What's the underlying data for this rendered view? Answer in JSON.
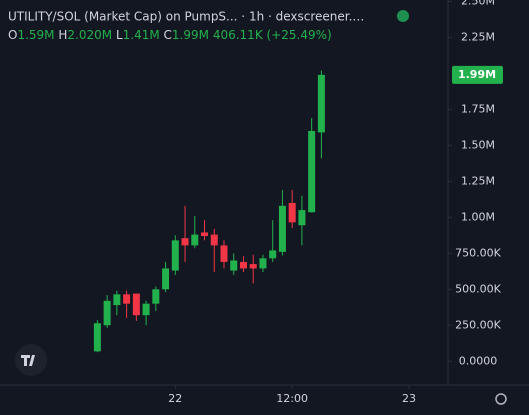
{
  "header": {
    "title": "UTILITY/SOL (Market Cap) on PumpS... · 1h · dexscreener.…",
    "ohlc": [
      {
        "label": "O",
        "value": "1.59M"
      },
      {
        "label": "H",
        "value": "2.020M"
      },
      {
        "label": "L",
        "value": "1.41M"
      },
      {
        "label": "C",
        "value": "1.99M"
      }
    ],
    "change": "406.11K (+25.49%)"
  },
  "chart_data": {
    "type": "candlestick",
    "categories": [
      null,
      null,
      null,
      null,
      null,
      null,
      null,
      null,
      null,
      null,
      null,
      null,
      null,
      null,
      null,
      null,
      null,
      null,
      null,
      null,
      null,
      null,
      null,
      null
    ],
    "open": [
      69000,
      250000,
      390000,
      465000,
      470000,
      320000,
      400000,
      500000,
      630000,
      855000,
      805000,
      895000,
      880000,
      805000,
      630000,
      690000,
      675000,
      645000,
      715000,
      760000,
      1100000,
      945000,
      1035000,
      1590000
    ],
    "high": [
      285000,
      460000,
      490000,
      490000,
      470000,
      420000,
      520000,
      690000,
      875000,
      1080000,
      1010000,
      980000,
      920000,
      840000,
      750000,
      730000,
      740000,
      740000,
      980000,
      1190000,
      1190000,
      1150000,
      1690000,
      2020000
    ],
    "low": [
      63000,
      230000,
      320000,
      300000,
      280000,
      250000,
      350000,
      480000,
      600000,
      690000,
      785000,
      840000,
      620000,
      645000,
      600000,
      620000,
      540000,
      620000,
      690000,
      735000,
      925000,
      805000,
      1035000,
      1410000
    ],
    "close": [
      264000,
      420000,
      465000,
      400000,
      320000,
      400000,
      500000,
      645000,
      840000,
      805000,
      880000,
      870000,
      805000,
      690000,
      700000,
      645000,
      645000,
      715000,
      770000,
      1080000,
      965000,
      1050000,
      1600000,
      1990000
    ],
    "up_color": "#22b14c",
    "down_color": "#f23645",
    "xlim": [
      -10,
      36
    ],
    "xticks": [
      {
        "value": 8,
        "label": "22"
      },
      {
        "value": 20,
        "label": "12:00"
      },
      {
        "value": 32,
        "label": "23"
      }
    ],
    "ylim": [
      -165000,
      2510000
    ],
    "yticks": [
      {
        "value": 0,
        "label": "0.0000"
      },
      {
        "value": 250000,
        "label": "250.00K"
      },
      {
        "value": 500000,
        "label": "500.00K"
      },
      {
        "value": 750000,
        "label": "750.00K"
      },
      {
        "value": 1000000,
        "label": "1.00M"
      },
      {
        "value": 1250000,
        "label": "1.25M"
      },
      {
        "value": 1500000,
        "label": "1.50M"
      },
      {
        "value": 1750000,
        "label": "1.75M"
      },
      {
        "value": 2250000,
        "label": "2.25M"
      },
      {
        "value": 2500000,
        "label": "2.50M"
      }
    ],
    "last_price": {
      "value": 1990000,
      "label": "1.99M"
    }
  }
}
